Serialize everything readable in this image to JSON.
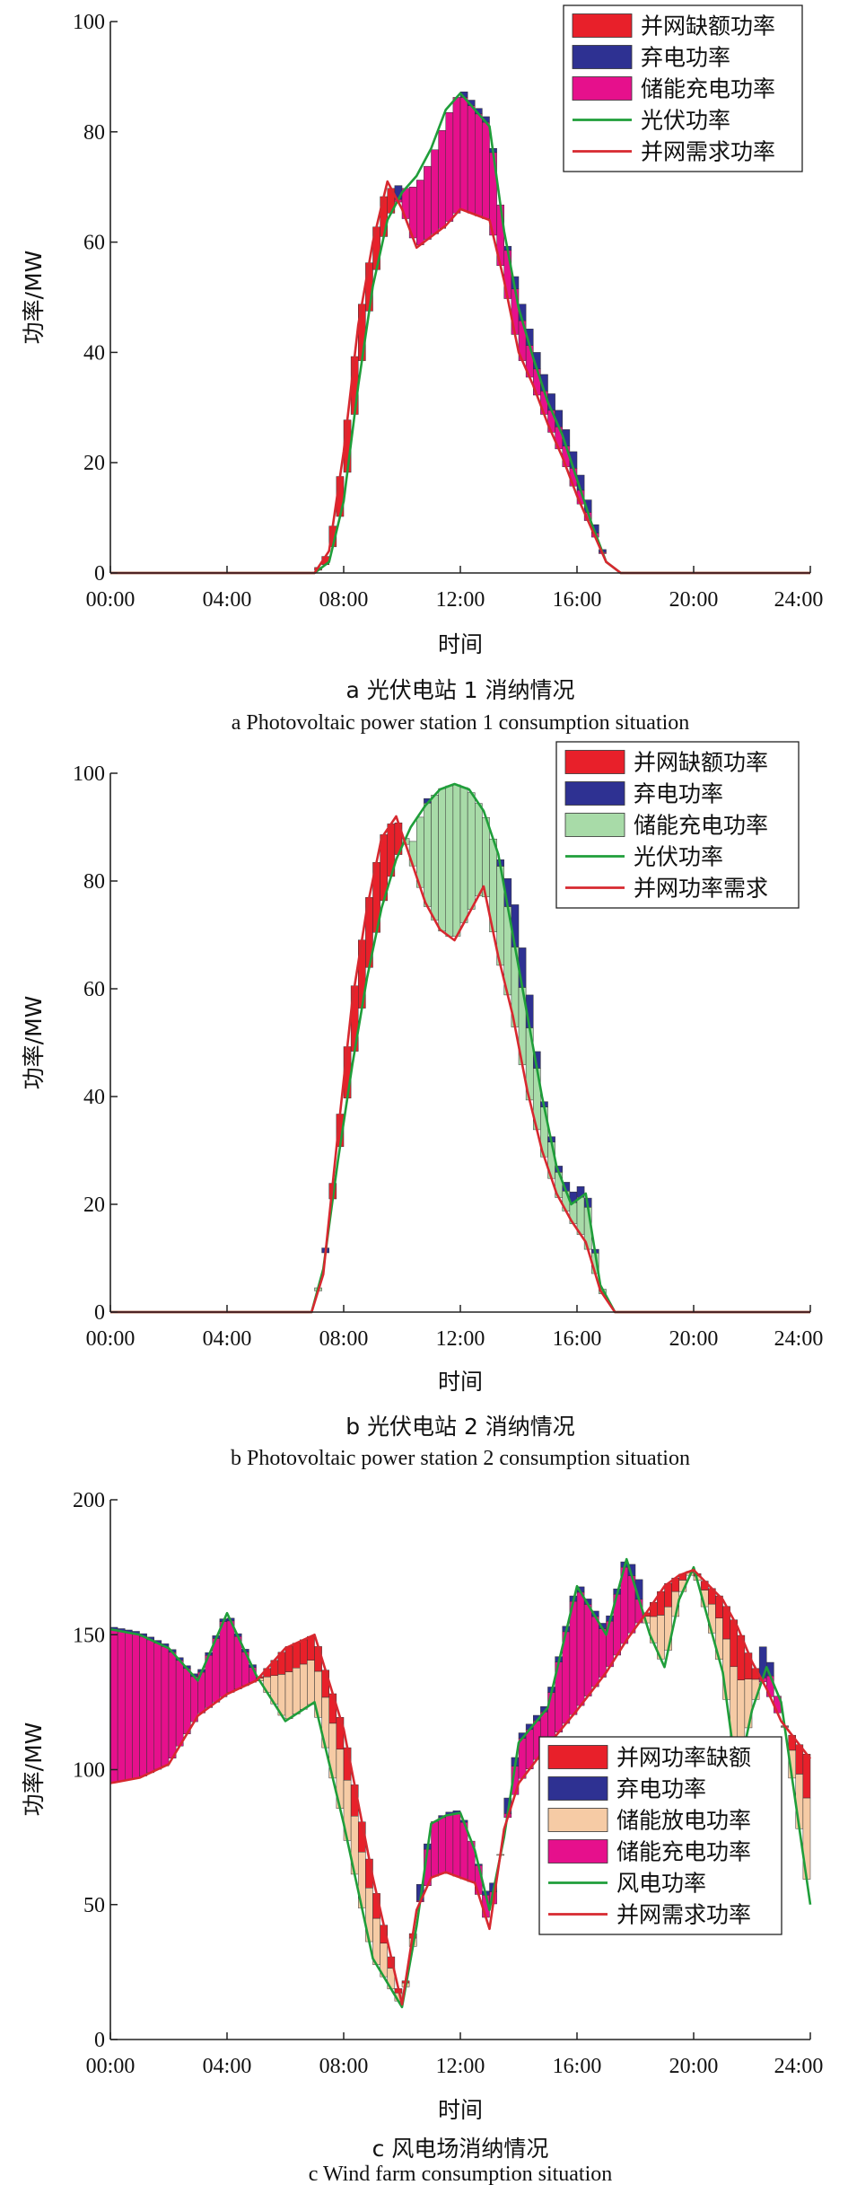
{
  "colors": {
    "shortfall": "#e8202a",
    "curtail": "#2e3192",
    "charge_pv1": "#e6108c",
    "charge_pv2": "#a8dba8",
    "discharge": "#f6cba5",
    "supply_line": "#1f9e3a",
    "demand_line": "#d7282f",
    "axis": "#222222"
  },
  "chart_data": [
    {
      "type": "area",
      "panel_id": "a",
      "caption_cn": "a  光伏电站 1 消纳情况",
      "caption_en": "a  Photovoltaic power station 1 consumption situation",
      "xlabel": "时间",
      "ylabel": "功率/MW",
      "xticks": [
        "00:00",
        "04:00",
        "08:00",
        "12:00",
        "16:00",
        "20:00",
        "24:00"
      ],
      "xlim": [
        0,
        24
      ],
      "ylim": [
        0,
        100
      ],
      "yticks": [
        0,
        20,
        40,
        60,
        80,
        100
      ],
      "grid": false,
      "legend_position": "top-right",
      "legend": [
        {
          "label": "并网缺额功率",
          "kind": "patch",
          "color_key": "shortfall"
        },
        {
          "label": "弃电功率",
          "kind": "patch",
          "color_key": "curtail"
        },
        {
          "label": "储能充电功率",
          "kind": "patch",
          "color_key": "charge_pv1"
        },
        {
          "label": "光伏功率",
          "kind": "line",
          "color_key": "supply_line"
        },
        {
          "label": "并网需求功率",
          "kind": "line",
          "color_key": "demand_line"
        }
      ],
      "x": [
        0,
        7,
        7.5,
        8,
        8.5,
        9,
        9.5,
        10,
        10.5,
        11,
        11.5,
        12,
        12.5,
        13,
        13.5,
        14,
        14.5,
        15,
        15.5,
        16,
        16.5,
        17,
        17.5,
        24
      ],
      "supply": [
        0,
        0,
        2,
        13,
        34,
        52,
        64,
        69,
        72,
        77,
        84,
        87,
        84,
        81,
        62,
        48,
        39,
        31,
        25,
        17,
        9,
        2,
        0,
        0
      ],
      "demand": [
        0,
        0,
        4,
        22,
        45,
        60,
        71,
        66,
        59,
        61,
        63,
        66,
        65,
        64,
        53,
        40,
        34,
        27,
        21,
        14,
        8,
        2,
        0,
        0
      ],
      "grid_power": [
        0,
        0,
        4,
        22,
        45,
        60,
        71,
        70,
        70,
        75,
        82,
        88,
        85,
        82,
        62,
        51,
        42,
        34,
        28,
        20,
        11,
        2,
        0,
        0
      ],
      "stack_order_above_demand": [
        "charge",
        "curtail"
      ]
    },
    {
      "type": "area",
      "panel_id": "b",
      "caption_cn": "b  光伏电站 2 消纳情况",
      "caption_en": "b  Photovoltaic power station 2 consumption situation",
      "xlabel": "时间",
      "ylabel": "功率/MW",
      "xticks": [
        "00:00",
        "04:00",
        "08:00",
        "12:00",
        "16:00",
        "20:00",
        "24:00"
      ],
      "xlim": [
        0,
        24
      ],
      "ylim": [
        0,
        100
      ],
      "yticks": [
        0,
        20,
        40,
        60,
        80,
        100
      ],
      "grid": false,
      "legend_position": "top-right",
      "legend": [
        {
          "label": "并网缺额功率",
          "kind": "patch",
          "color_key": "shortfall"
        },
        {
          "label": "弃电功率",
          "kind": "patch",
          "color_key": "curtail"
        },
        {
          "label": "储能充电功率",
          "kind": "patch",
          "color_key": "charge_pv2"
        },
        {
          "label": "光伏功率",
          "kind": "line",
          "color_key": "supply_line"
        },
        {
          "label": "并网功率需求",
          "kind": "line",
          "color_key": "demand_line"
        }
      ],
      "x": [
        0,
        6.9,
        7.3,
        7.8,
        8.3,
        8.8,
        9.3,
        9.8,
        10.3,
        10.8,
        11.3,
        11.8,
        12.3,
        12.8,
        13.3,
        13.8,
        14.3,
        14.8,
        15.3,
        15.8,
        16.3,
        16.8,
        17.3,
        24
      ],
      "supply": [
        0,
        0,
        8,
        28,
        46,
        62,
        75,
        84,
        90,
        94,
        97,
        98,
        97,
        93,
        85,
        70,
        55,
        40,
        27,
        20,
        22,
        5,
        0,
        0
      ],
      "demand": [
        0,
        0,
        7,
        33,
        58,
        75,
        88,
        92,
        84,
        76,
        71,
        69,
        74,
        79,
        66,
        55,
        41,
        30,
        22,
        17,
        13,
        4,
        0,
        0
      ],
      "grid_power": [
        0,
        0,
        8,
        34,
        58,
        75,
        88,
        92,
        86,
        95,
        97,
        98,
        97,
        93,
        85,
        78,
        62,
        41,
        28,
        22,
        24,
        5,
        0,
        0
      ],
      "stack_order_above_demand": [
        "charge",
        "curtail"
      ]
    },
    {
      "type": "area",
      "panel_id": "c",
      "caption_cn": "c  风电场消纳情况",
      "caption_en": "c  Wind farm consumption situation",
      "xlabel": "时间",
      "ylabel": "功率/MW",
      "xticks": [
        "00:00",
        "04:00",
        "08:00",
        "12:00",
        "16:00",
        "20:00",
        "24:00"
      ],
      "xlim": [
        0,
        24
      ],
      "ylim": [
        0,
        200
      ],
      "yticks": [
        0,
        50,
        100,
        150,
        200
      ],
      "grid": false,
      "legend_position": "bottom-right",
      "legend": [
        {
          "label": "并网功率缺额",
          "kind": "patch",
          "color_key": "shortfall"
        },
        {
          "label": "弃电功率",
          "kind": "patch",
          "color_key": "curtail"
        },
        {
          "label": "储能放电功率",
          "kind": "patch",
          "color_key": "discharge"
        },
        {
          "label": "储能充电功率",
          "kind": "patch",
          "color_key": "charge_pv1"
        },
        {
          "label": "风电功率",
          "kind": "line",
          "color_key": "supply_line"
        },
        {
          "label": "并网需求功率",
          "kind": "line",
          "color_key": "demand_line"
        }
      ],
      "x": [
        0,
        1,
        2,
        3,
        4,
        5,
        6,
        7,
        8,
        9,
        10,
        10.5,
        11,
        11.5,
        12,
        12.5,
        13,
        13.5,
        14,
        15,
        16,
        17,
        17.7,
        18.5,
        19,
        19.5,
        20,
        21,
        21.5,
        22,
        22.5,
        23,
        24
      ],
      "supply": [
        152,
        150,
        145,
        133,
        158,
        135,
        118,
        125,
        80,
        30,
        12,
        42,
        80,
        83,
        84,
        70,
        48,
        75,
        110,
        123,
        168,
        150,
        178,
        150,
        138,
        163,
        175,
        136,
        96,
        122,
        138,
        125,
        50
      ],
      "demand": [
        95,
        97,
        102,
        120,
        128,
        133,
        145,
        150,
        115,
        60,
        13,
        48,
        60,
        62,
        60,
        58,
        41,
        78,
        95,
        109,
        122,
        136,
        148,
        160,
        168,
        172,
        174,
        163,
        153,
        140,
        130,
        118,
        104
      ],
      "grid_power": [
        153,
        151,
        146,
        134,
        159,
        136,
        148,
        152,
        117,
        62,
        13,
        50,
        80,
        84,
        85,
        70,
        50,
        82,
        112,
        125,
        170,
        152,
        180,
        162,
        169,
        173,
        177,
        166,
        155,
        144,
        146,
        121,
        107
      ],
      "stack_order_above_demand": [
        "charge",
        "curtail"
      ]
    }
  ]
}
